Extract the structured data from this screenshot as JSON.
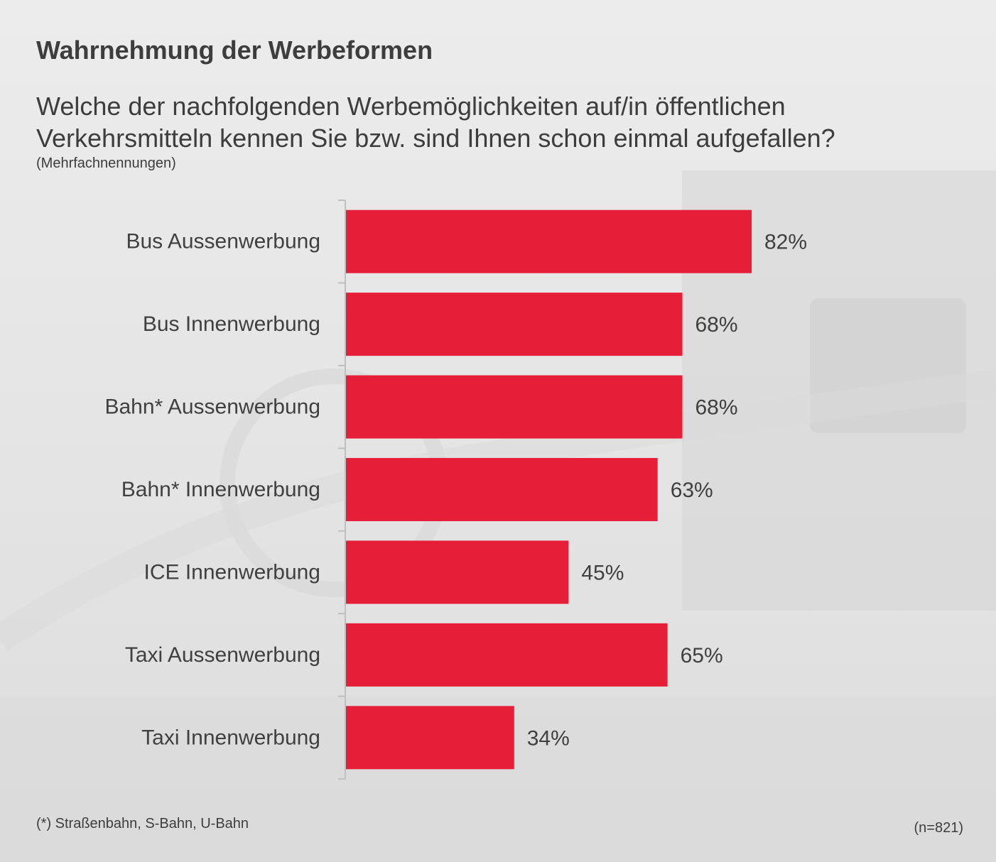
{
  "title": "Wahrnehmung der Werbeformen",
  "question": "Welche der nachfolgenden Werbemöglichkeiten auf/in öffentlichen Verkehrsmitteln kennen Sie bzw. sind Ihnen schon einmal aufgefallen?",
  "note": "(Mehrfachnennungen)",
  "footnote": "(*) Straßenbahn, S-Bahn, U-Bahn",
  "sample": "(n=821)",
  "colors": {
    "bar": "#e61e37",
    "axis": "#bfbfbf",
    "text": "#404040"
  },
  "chart_data": {
    "type": "bar",
    "orientation": "horizontal",
    "categories": [
      "Bus Aussenwerbung",
      "Bus Innenwerbung",
      "Bahn* Aussenwerbung",
      "Bahn* Innenwerbung",
      "ICE Innenwerbung",
      "Taxi Aussenwerbung",
      "Taxi Innenwerbung"
    ],
    "values": [
      82,
      68,
      68,
      63,
      45,
      65,
      34
    ],
    "value_labels": [
      "82%",
      "68%",
      "68%",
      "63%",
      "45%",
      "65%",
      "34%"
    ],
    "unit": "%",
    "xlim": [
      0,
      100
    ],
    "grid": false,
    "legend": "none"
  }
}
